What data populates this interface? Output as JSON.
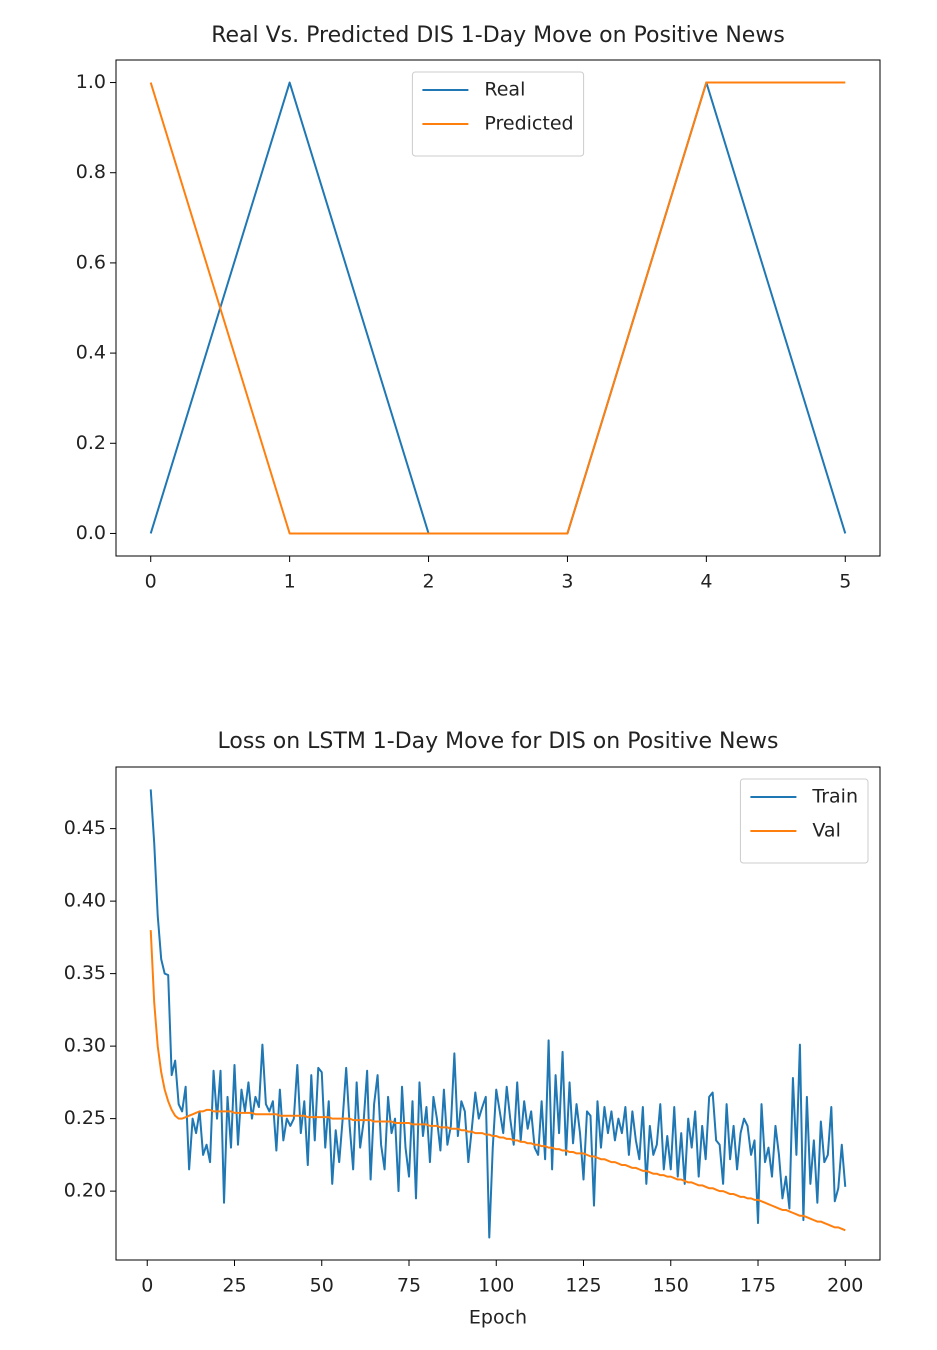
{
  "chart_data": [
    {
      "type": "line",
      "title": "Real Vs. Predicted DIS 1-Day Move on Positive News",
      "x": [
        0,
        1,
        2,
        3,
        4,
        5
      ],
      "series": [
        {
          "name": "Real",
          "color": "#1f77b4",
          "values": [
            0,
            1,
            0,
            0,
            1,
            0
          ]
        },
        {
          "name": "Predicted",
          "color": "#ff7f0e",
          "values": [
            1,
            0,
            0,
            0,
            1,
            1
          ]
        }
      ],
      "xlim": [
        -0.25,
        5.25
      ],
      "xticks": [
        0,
        1,
        2,
        3,
        4,
        5
      ],
      "ylim": [
        -0.05,
        1.05
      ],
      "yticks": [
        {
          "value": 0,
          "label": "0.0"
        },
        0.2,
        0.4,
        0.6,
        0.8,
        {
          "value": 1,
          "label": "1.0"
        }
      ],
      "legend": "upper center",
      "grid": false
    },
    {
      "type": "line",
      "title": "Loss on LSTM 1-Day Move for DIS on Positive News",
      "xlabel": "Epoch",
      "x": [
        1,
        2,
        3,
        4,
        5,
        6,
        7,
        8,
        9,
        10,
        11,
        12,
        13,
        14,
        15,
        16,
        17,
        18,
        19,
        20,
        21,
        22,
        23,
        24,
        25,
        26,
        27,
        28,
        29,
        30,
        31,
        32,
        33,
        34,
        35,
        36,
        37,
        38,
        39,
        40,
        41,
        42,
        43,
        44,
        45,
        46,
        47,
        48,
        49,
        50,
        51,
        52,
        53,
        54,
        55,
        56,
        57,
        58,
        59,
        60,
        61,
        62,
        63,
        64,
        65,
        66,
        67,
        68,
        69,
        70,
        71,
        72,
        73,
        74,
        75,
        76,
        77,
        78,
        79,
        80,
        81,
        82,
        83,
        84,
        85,
        86,
        87,
        88,
        89,
        90,
        91,
        92,
        93,
        94,
        95,
        96,
        97,
        98,
        99,
        100,
        101,
        102,
        103,
        104,
        105,
        106,
        107,
        108,
        109,
        110,
        111,
        112,
        113,
        114,
        115,
        116,
        117,
        118,
        119,
        120,
        121,
        122,
        123,
        124,
        125,
        126,
        127,
        128,
        129,
        130,
        131,
        132,
        133,
        134,
        135,
        136,
        137,
        138,
        139,
        140,
        141,
        142,
        143,
        144,
        145,
        146,
        147,
        148,
        149,
        150,
        151,
        152,
        153,
        154,
        155,
        156,
        157,
        158,
        159,
        160,
        161,
        162,
        163,
        164,
        165,
        166,
        167,
        168,
        169,
        170,
        171,
        172,
        173,
        174,
        175,
        176,
        177,
        178,
        179,
        180,
        181,
        182,
        183,
        184,
        185,
        186,
        187,
        188,
        189,
        190,
        191,
        192,
        193,
        194,
        195,
        196,
        197,
        198,
        199,
        200
      ],
      "series": [
        {
          "name": "Train",
          "color": "#1f77b4",
          "values": [
            0.477,
            0.44,
            0.39,
            0.36,
            0.35,
            0.349,
            0.28,
            0.29,
            0.26,
            0.255,
            0.272,
            0.215,
            0.25,
            0.24,
            0.255,
            0.225,
            0.232,
            0.22,
            0.283,
            0.25,
            0.283,
            0.192,
            0.265,
            0.23,
            0.287,
            0.232,
            0.27,
            0.255,
            0.275,
            0.25,
            0.265,
            0.258,
            0.301,
            0.26,
            0.255,
            0.262,
            0.228,
            0.27,
            0.235,
            0.25,
            0.245,
            0.25,
            0.287,
            0.24,
            0.262,
            0.218,
            0.28,
            0.235,
            0.285,
            0.282,
            0.23,
            0.262,
            0.205,
            0.242,
            0.22,
            0.25,
            0.285,
            0.245,
            0.215,
            0.275,
            0.23,
            0.248,
            0.283,
            0.208,
            0.26,
            0.28,
            0.232,
            0.215,
            0.265,
            0.24,
            0.25,
            0.2,
            0.272,
            0.23,
            0.21,
            0.262,
            0.195,
            0.275,
            0.238,
            0.258,
            0.22,
            0.265,
            0.25,
            0.228,
            0.27,
            0.232,
            0.245,
            0.295,
            0.238,
            0.262,
            0.255,
            0.22,
            0.243,
            0.268,
            0.25,
            0.258,
            0.265,
            0.168,
            0.23,
            0.27,
            0.255,
            0.24,
            0.272,
            0.25,
            0.232,
            0.275,
            0.235,
            0.262,
            0.243,
            0.255,
            0.23,
            0.225,
            0.262,
            0.222,
            0.304,
            0.215,
            0.28,
            0.24,
            0.296,
            0.225,
            0.275,
            0.233,
            0.26,
            0.24,
            0.208,
            0.255,
            0.252,
            0.19,
            0.262,
            0.23,
            0.258,
            0.24,
            0.255,
            0.235,
            0.25,
            0.24,
            0.258,
            0.225,
            0.255,
            0.235,
            0.222,
            0.258,
            0.205,
            0.245,
            0.225,
            0.232,
            0.26,
            0.215,
            0.238,
            0.215,
            0.258,
            0.21,
            0.24,
            0.205,
            0.25,
            0.23,
            0.255,
            0.21,
            0.245,
            0.222,
            0.265,
            0.268,
            0.235,
            0.232,
            0.205,
            0.26,
            0.222,
            0.245,
            0.215,
            0.24,
            0.25,
            0.245,
            0.225,
            0.235,
            0.178,
            0.26,
            0.22,
            0.23,
            0.21,
            0.245,
            0.225,
            0.195,
            0.21,
            0.188,
            0.278,
            0.225,
            0.301,
            0.18,
            0.265,
            0.205,
            0.235,
            0.192,
            0.248,
            0.22,
            0.225,
            0.258,
            0.193,
            0.202,
            0.232,
            0.203
          ]
        },
        {
          "name": "Val",
          "color": "#ff7f0e",
          "values": [
            0.38,
            0.33,
            0.3,
            0.282,
            0.27,
            0.262,
            0.256,
            0.252,
            0.25,
            0.25,
            0.251,
            0.252,
            0.253,
            0.254,
            0.255,
            0.255,
            0.256,
            0.256,
            0.255,
            0.255,
            0.255,
            0.255,
            0.255,
            0.255,
            0.254,
            0.254,
            0.254,
            0.254,
            0.254,
            0.254,
            0.253,
            0.253,
            0.253,
            0.253,
            0.253,
            0.253,
            0.253,
            0.252,
            0.252,
            0.252,
            0.252,
            0.252,
            0.252,
            0.252,
            0.252,
            0.251,
            0.251,
            0.251,
            0.251,
            0.251,
            0.251,
            0.251,
            0.25,
            0.25,
            0.25,
            0.25,
            0.25,
            0.25,
            0.249,
            0.249,
            0.249,
            0.249,
            0.249,
            0.249,
            0.248,
            0.248,
            0.248,
            0.248,
            0.248,
            0.248,
            0.247,
            0.247,
            0.247,
            0.247,
            0.247,
            0.246,
            0.246,
            0.246,
            0.246,
            0.246,
            0.245,
            0.245,
            0.245,
            0.244,
            0.244,
            0.244,
            0.243,
            0.243,
            0.243,
            0.242,
            0.242,
            0.241,
            0.241,
            0.24,
            0.24,
            0.24,
            0.239,
            0.239,
            0.238,
            0.238,
            0.237,
            0.237,
            0.236,
            0.236,
            0.235,
            0.235,
            0.234,
            0.234,
            0.233,
            0.233,
            0.232,
            0.232,
            0.231,
            0.231,
            0.23,
            0.23,
            0.229,
            0.229,
            0.228,
            0.228,
            0.227,
            0.227,
            0.226,
            0.226,
            0.226,
            0.225,
            0.224,
            0.224,
            0.223,
            0.222,
            0.222,
            0.221,
            0.22,
            0.22,
            0.219,
            0.218,
            0.218,
            0.217,
            0.216,
            0.216,
            0.215,
            0.214,
            0.214,
            0.213,
            0.212,
            0.212,
            0.211,
            0.211,
            0.21,
            0.21,
            0.209,
            0.208,
            0.208,
            0.207,
            0.206,
            0.206,
            0.205,
            0.204,
            0.204,
            0.203,
            0.202,
            0.202,
            0.201,
            0.2,
            0.2,
            0.199,
            0.198,
            0.198,
            0.197,
            0.196,
            0.196,
            0.195,
            0.195,
            0.194,
            0.194,
            0.193,
            0.192,
            0.191,
            0.19,
            0.189,
            0.188,
            0.187,
            0.187,
            0.186,
            0.185,
            0.184,
            0.183,
            0.183,
            0.182,
            0.181,
            0.18,
            0.179,
            0.179,
            0.178,
            0.177,
            0.176,
            0.175,
            0.175,
            0.174,
            0.173
          ]
        }
      ],
      "xlim": [
        -8.95,
        209.95
      ],
      "xticks": [
        0,
        25,
        50,
        75,
        100,
        125,
        150,
        175,
        200
      ],
      "ylim": [
        0.1525,
        0.4925
      ],
      "yticks": [
        {
          "value": 0.2,
          "label": "0.20"
        },
        0.25,
        {
          "value": 0.3,
          "label": "0.30"
        },
        0.35,
        {
          "value": 0.4,
          "label": "0.40"
        },
        0.45
      ],
      "legend": "upper right",
      "grid": false
    }
  ]
}
